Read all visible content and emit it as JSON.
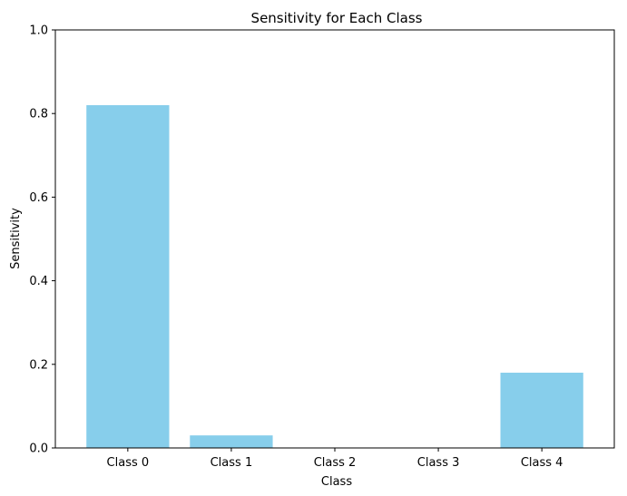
{
  "chart_data": {
    "type": "bar",
    "title": "Sensitivity for Each Class",
    "xlabel": "Class",
    "ylabel": "Sensitivity",
    "categories": [
      "Class 0",
      "Class 1",
      "Class 2",
      "Class 3",
      "Class 4"
    ],
    "values": [
      0.82,
      0.03,
      0.0,
      0.0,
      0.18
    ],
    "ylim": [
      0,
      1
    ],
    "yticks": [
      0.0,
      0.2,
      0.4,
      0.6,
      0.8,
      1.0
    ],
    "ytick_labels": [
      "0.0",
      "0.2",
      "0.4",
      "0.6",
      "0.8",
      "1.0"
    ],
    "bar_color": "#87ceeb",
    "grid": false,
    "legend": "none"
  }
}
